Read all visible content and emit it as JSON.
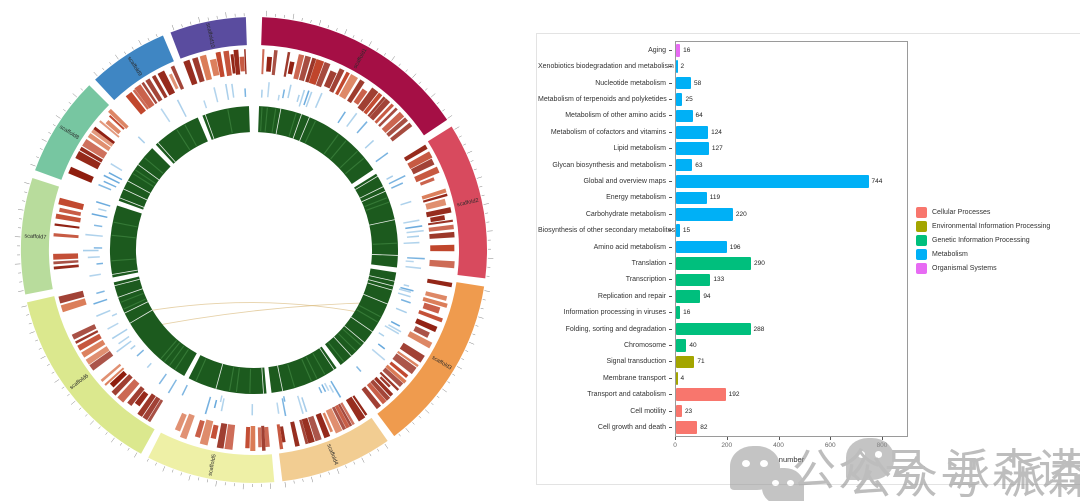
{
  "chart_data": {
    "type": "bar",
    "orientation": "horizontal",
    "title": "",
    "xlabel": "number",
    "ylabel": "",
    "xlim": [
      0,
      885
    ],
    "x_ticks": [
      0,
      200,
      400,
      600,
      800
    ],
    "grid": false,
    "legend_position": "right",
    "palette": {
      "Cellular Processes": "#F8766D",
      "Environmental Information Processing": "#A3A500",
      "Genetic Information Processing": "#00BF7D",
      "Metabolism": "#00B0F6",
      "Organismal Systems": "#E76BF3"
    },
    "items": [
      {
        "label": "Aging",
        "value": 16,
        "group": "Organismal Systems"
      },
      {
        "label": "Xenobiotics biodegradation and metabolism",
        "value": 2,
        "group": "Metabolism"
      },
      {
        "label": "Nucleotide metabolism",
        "value": 58,
        "group": "Metabolism"
      },
      {
        "label": "Metabolism of terpenoids and polyketides",
        "value": 25,
        "group": "Metabolism"
      },
      {
        "label": "Metabolism of other amino acids",
        "value": 64,
        "group": "Metabolism"
      },
      {
        "label": "Metabolism of cofactors and vitamins",
        "value": 124,
        "group": "Metabolism"
      },
      {
        "label": "Lipid metabolism",
        "value": 127,
        "group": "Metabolism"
      },
      {
        "label": "Glycan biosynthesis and metabolism",
        "value": 63,
        "group": "Metabolism"
      },
      {
        "label": "Global and overview maps",
        "value": 744,
        "group": "Metabolism"
      },
      {
        "label": "Energy metabolism",
        "value": 119,
        "group": "Metabolism"
      },
      {
        "label": "Carbohydrate metabolism",
        "value": 220,
        "group": "Metabolism"
      },
      {
        "label": "Biosynthesis of other secondary metabolites",
        "value": 15,
        "group": "Metabolism"
      },
      {
        "label": "Amino acid metabolism",
        "value": 196,
        "group": "Metabolism"
      },
      {
        "label": "Translation",
        "value": 290,
        "group": "Genetic Information Processing"
      },
      {
        "label": "Transcription",
        "value": 133,
        "group": "Genetic Information Processing"
      },
      {
        "label": "Replication and repair",
        "value": 94,
        "group": "Genetic Information Processing"
      },
      {
        "label": "Information processing in viruses",
        "value": 16,
        "group": "Genetic Information Processing"
      },
      {
        "label": "Folding, sorting and degradation",
        "value": 288,
        "group": "Genetic Information Processing"
      },
      {
        "label": "Chromosome",
        "value": 40,
        "group": "Genetic Information Processing"
      },
      {
        "label": "Signal transduction",
        "value": 71,
        "group": "Environmental Information Processing"
      },
      {
        "label": "Membrane transport",
        "value": 4,
        "group": "Environmental Information Processing"
      },
      {
        "label": "Transport and catabolism",
        "value": 192,
        "group": "Cellular Processes"
      },
      {
        "label": "Cell motility",
        "value": 23,
        "group": "Cellular Processes"
      },
      {
        "label": "Cell growth and death",
        "value": 82,
        "group": "Cellular Processes"
      }
    ]
  },
  "legend": {
    "items": [
      {
        "label": "Cellular Processes",
        "color": "#F8766D"
      },
      {
        "label": "Environmental Information Processing",
        "color": "#A3A500"
      },
      {
        "label": "Genetic Information Processing",
        "color": "#00BF7D"
      },
      {
        "label": "Metabolism",
        "color": "#00B0F6"
      },
      {
        "label": "Organismal Systems",
        "color": "#E76BF3"
      }
    ]
  },
  "circos": {
    "segments": [
      {
        "label": "scaffold1",
        "color": "#a50f45",
        "start": 2,
        "end": 56
      },
      {
        "label": "scaffold2",
        "color": "#d84a5e",
        "start": 58,
        "end": 97
      },
      {
        "label": "scaffold3",
        "color": "#ef9b4e",
        "start": 99,
        "end": 143
      },
      {
        "label": "scaffold4",
        "color": "#f2cd92",
        "start": 145,
        "end": 173
      },
      {
        "label": "scaffold5",
        "color": "#eef0a6",
        "start": 175,
        "end": 207
      },
      {
        "label": "scaffold6",
        "color": "#dbe88e",
        "start": 209,
        "end": 257
      },
      {
        "label": "scaffold7",
        "color": "#b8dc9c",
        "start": 259,
        "end": 288
      },
      {
        "label": "scaffold8",
        "color": "#77c6a1",
        "start": 290,
        "end": 315
      },
      {
        "label": "scaffold9",
        "color": "#3f86c3",
        "start": 317,
        "end": 337
      },
      {
        "label": "scaffold10",
        "color": "#5a4c9f",
        "start": 339,
        "end": 358
      }
    ],
    "rings": {
      "heatmap_colors": [
        "#8f1d0e",
        "#c0452b",
        "#da7a55"
      ],
      "tick_colors": [
        "#66a8dc",
        "#a6cdea"
      ],
      "inner_color": "#1c5a1e",
      "inner_light": "#55a055",
      "link_color": "#d8b87a"
    }
  },
  "watermark": {
    "text": "公众号 派森诺生物"
  }
}
